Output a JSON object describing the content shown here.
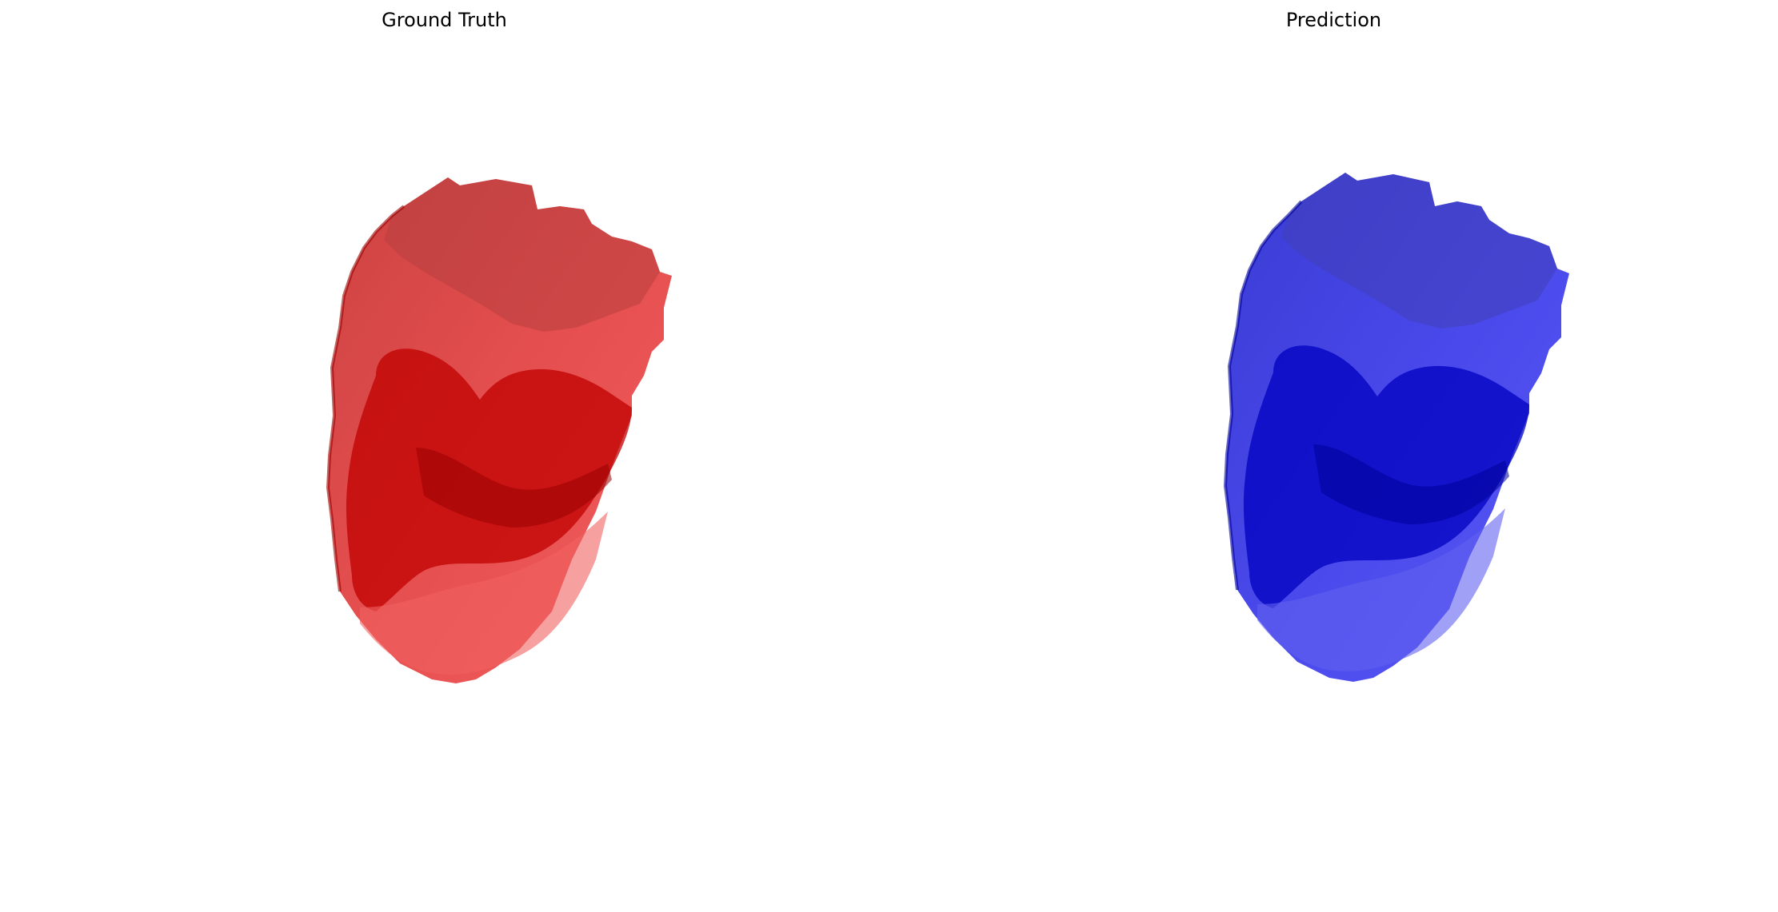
{
  "panels": {
    "ground_truth": {
      "title": "Ground Truth",
      "color": "#ff0000",
      "dark_color": "#b00000"
    },
    "prediction": {
      "title": "Prediction",
      "color": "#0000ff",
      "dark_color": "#0000b0"
    }
  }
}
